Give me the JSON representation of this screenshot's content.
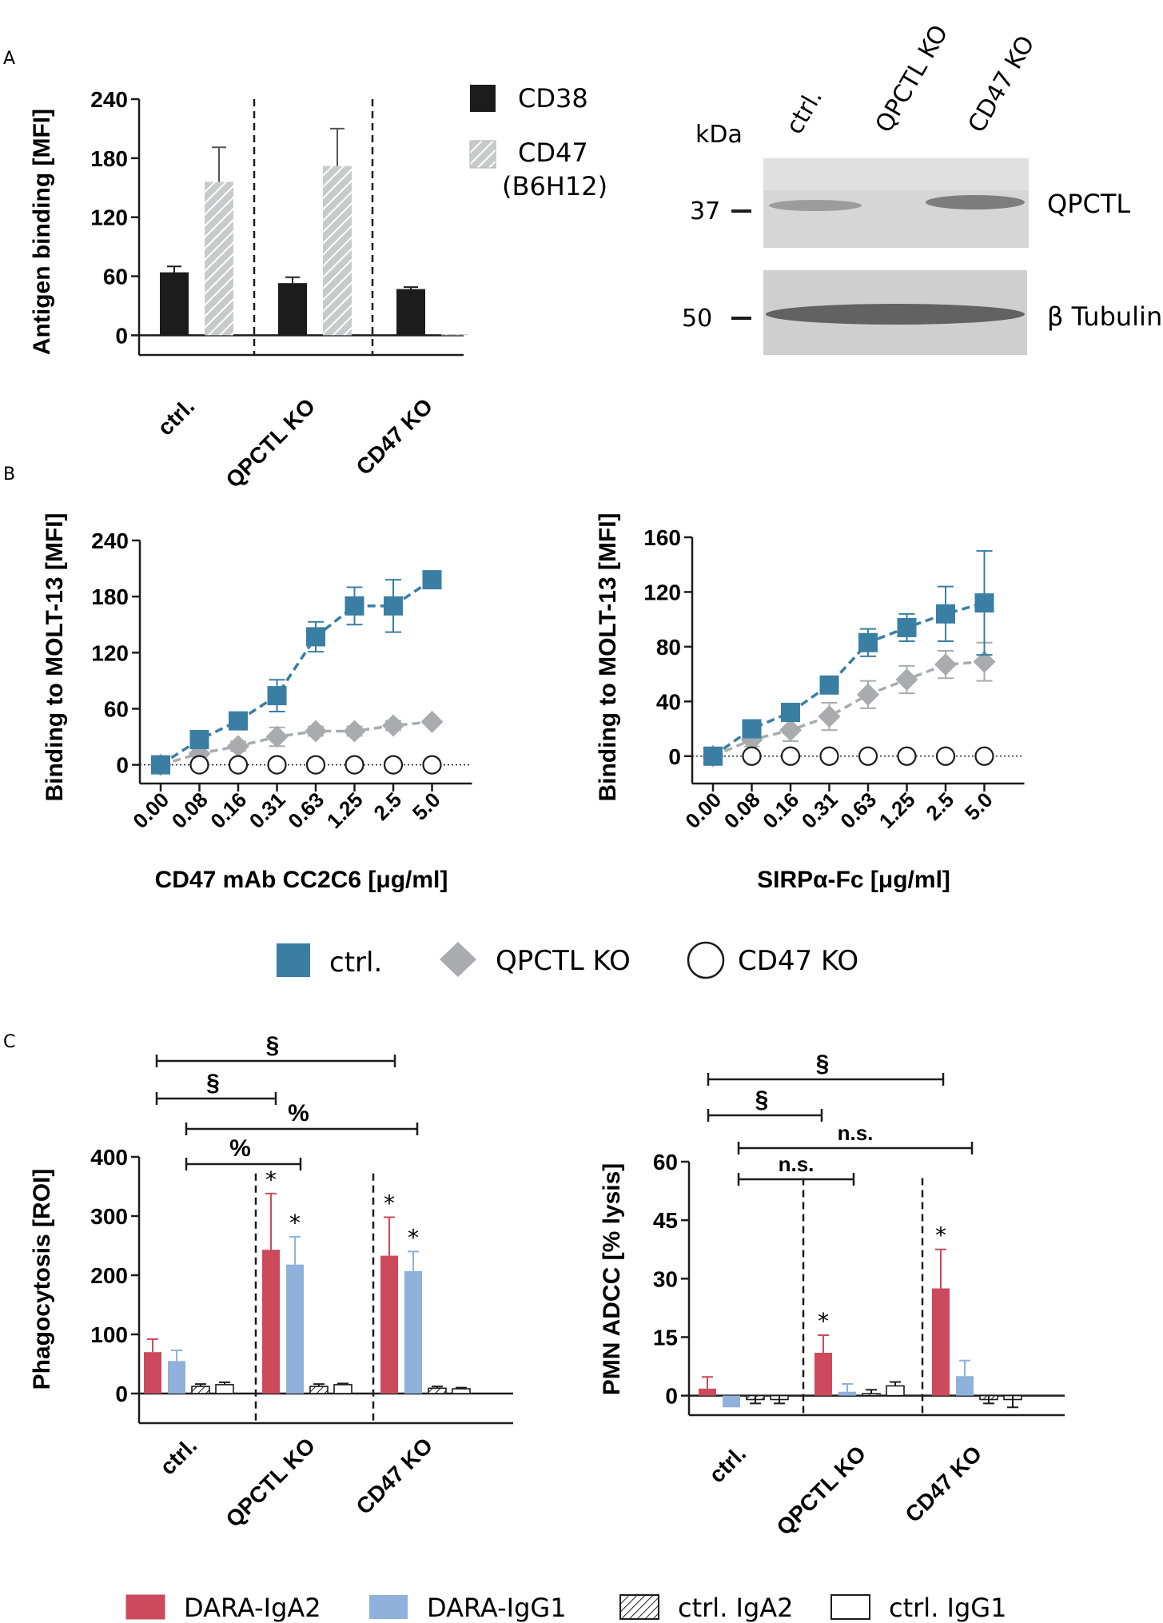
{
  "panel_labels": {
    "a": "A",
    "b": "B",
    "c": "C"
  },
  "colors": {
    "ctrl_teal": "#3a7ea4",
    "qpctl_grey": "#a9abae",
    "dara_iga2": "#cc4a5c",
    "dara_igg1": "#8fb1dc",
    "black": "#1c1c1c"
  },
  "chart_data": [
    {
      "id": "A-bar",
      "type": "bar",
      "title": "",
      "ylabel": "Antigen binding [MFI]",
      "xlabel": "",
      "ylim": [
        -20,
        240
      ],
      "yticks": [
        "0",
        "60",
        "120",
        "180",
        "240"
      ],
      "ytick_values": [
        0,
        60,
        120,
        180,
        240
      ],
      "categories": [
        "ctrl.",
        "QPCTL KO",
        "CD47 KO"
      ],
      "series": [
        {
          "name": "CD38",
          "values": [
            64,
            53,
            47
          ],
          "errors": [
            6,
            6,
            2
          ]
        },
        {
          "name": "CD47",
          "sublabel": "(B6H12)",
          "values": [
            156,
            172,
            1
          ],
          "errors": [
            35,
            38,
            0
          ]
        }
      ]
    },
    {
      "id": "A-blot",
      "type": "table",
      "kda_label": "kDa",
      "lanes": [
        "ctrl.",
        "QPCTL  KO",
        "CD47 KO"
      ],
      "bands": [
        {
          "marker": "37",
          "label": "QPCTL"
        },
        {
          "marker": "50",
          "label": "β Tubulin"
        }
      ]
    },
    {
      "id": "B-left",
      "type": "line",
      "xlabel": "CD47 mAb CC2C6 [μg/ml]",
      "ylabel": "Binding to MOLT-13 [MFI]",
      "x": [
        "0.00",
        "0.08",
        "0.16",
        "0.31",
        "0.63",
        "1.25",
        "2.5",
        "5.0"
      ],
      "ylim": [
        -20,
        240
      ],
      "yticks": [
        "0",
        "60",
        "120",
        "180",
        "240"
      ],
      "ytick_values": [
        0,
        60,
        120,
        180,
        240
      ],
      "series": [
        {
          "name": "ctrl.",
          "values": [
            0,
            27,
            47,
            74,
            137,
            170,
            170,
            198
          ],
          "errors": [
            3,
            4,
            5,
            17,
            16,
            20,
            28,
            6
          ]
        },
        {
          "name": "QPCTL KO",
          "values": [
            0,
            12,
            20,
            30,
            36,
            36,
            42,
            46
          ],
          "errors": [
            2,
            3,
            5,
            10,
            5,
            5,
            5,
            3
          ]
        },
        {
          "name": "CD47 KO",
          "values": [
            0,
            0,
            0,
            0,
            0,
            0,
            0,
            0
          ]
        }
      ]
    },
    {
      "id": "B-right",
      "type": "line",
      "xlabel": "SIRPα-Fc [μg/ml]",
      "ylabel": "Binding to MOLT-13 [MFI]",
      "x": [
        "0.00",
        "0.08",
        "0.16",
        "0.31",
        "0.63",
        "1.25",
        "2.5",
        "5.0"
      ],
      "ylim": [
        -20,
        160
      ],
      "yticks": [
        "0",
        "40",
        "80",
        "120",
        "160"
      ],
      "ytick_values": [
        0,
        40,
        80,
        120,
        160
      ],
      "series": [
        {
          "name": "ctrl.",
          "values": [
            0,
            20,
            32,
            52,
            83,
            94,
            104,
            112
          ],
          "errors": [
            2,
            3,
            5,
            6,
            10,
            10,
            20,
            38
          ]
        },
        {
          "name": "QPCTL KO",
          "values": [
            0,
            12,
            19,
            29,
            45,
            56,
            67,
            69
          ],
          "errors": [
            2,
            5,
            8,
            10,
            10,
            10,
            10,
            14
          ]
        },
        {
          "name": "CD47 KO",
          "values": [
            0,
            0,
            0,
            0,
            0,
            0,
            0,
            0
          ]
        }
      ]
    },
    {
      "id": "C-left",
      "type": "bar",
      "ylabel": "Phagocytosis [ROI]",
      "ylim": [
        -50,
        400
      ],
      "yticks": [
        "0",
        "100",
        "200",
        "300",
        "400"
      ],
      "ytick_values": [
        0,
        100,
        200,
        300,
        400
      ],
      "categories": [
        "ctrl.",
        "QPCTL KO",
        "CD47 KO"
      ],
      "series": [
        {
          "name": "DARA-IgA2",
          "values": [
            70,
            243,
            233
          ],
          "errors": [
            22,
            95,
            65
          ]
        },
        {
          "name": "DARA-IgG1",
          "values": [
            55,
            218,
            207
          ],
          "errors": [
            18,
            47,
            33
          ]
        },
        {
          "name": "ctrl. IgA2",
          "values": [
            12,
            12,
            9
          ],
          "errors": [
            4,
            4,
            3
          ]
        },
        {
          "name": "ctrl. IgG1",
          "values": [
            15,
            15,
            8
          ],
          "errors": [
            4,
            2,
            2
          ]
        }
      ],
      "stars": [
        "*",
        "*",
        "*",
        "*"
      ],
      "comparisons": [
        {
          "symbol": "§"
        },
        {
          "symbol": "§"
        },
        {
          "symbol": "%"
        },
        {
          "symbol": "%"
        }
      ]
    },
    {
      "id": "C-right",
      "type": "bar",
      "ylabel": "PMN ADCC [% lysis]",
      "ylim": [
        -5,
        60
      ],
      "yticks": [
        "0",
        "15",
        "30",
        "45",
        "60"
      ],
      "ytick_values": [
        0,
        15,
        30,
        45,
        60
      ],
      "categories": [
        "ctrl.",
        "QPCTL KO",
        "CD47 KO"
      ],
      "series": [
        {
          "name": "DARA-IgA2",
          "values": [
            1.8,
            11,
            27.5
          ],
          "errors": [
            3,
            4.5,
            10
          ]
        },
        {
          "name": "DARA-IgG1",
          "values": [
            -3,
            1,
            5
          ],
          "errors": [
            0,
            2,
            4
          ]
        },
        {
          "name": "ctrl. IgA2",
          "values": [
            -1,
            0.5,
            -1
          ],
          "errors": [
            1,
            1,
            1
          ]
        },
        {
          "name": "ctrl. IgG1",
          "values": [
            -1,
            2.5,
            -1
          ],
          "errors": [
            1,
            1,
            2
          ]
        }
      ],
      "stars": [
        "*",
        "*"
      ],
      "comparisons": [
        {
          "symbol": "§"
        },
        {
          "symbol": "§"
        },
        {
          "symbol": "n.s."
        },
        {
          "symbol": "n.s."
        }
      ]
    }
  ],
  "legend_a": [
    {
      "label": "CD38"
    },
    {
      "label": "CD47"
    }
  ],
  "legend_b": [
    {
      "label": "ctrl."
    },
    {
      "label": "QPCTL KO"
    },
    {
      "label": "CD47 KO"
    }
  ],
  "legend_c": [
    {
      "label": "DARA-IgA2"
    },
    {
      "label": "DARA-IgG1"
    },
    {
      "label": "ctrl. IgA2"
    },
    {
      "label": "ctrl. IgG1"
    }
  ]
}
